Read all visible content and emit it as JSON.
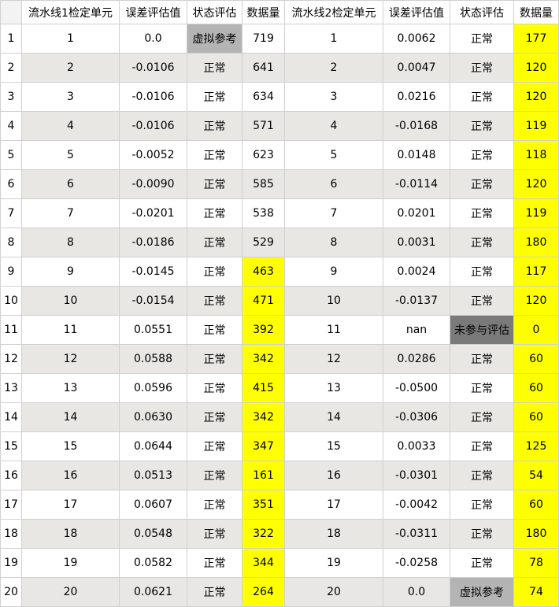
{
  "headers": [
    "流水线1检定单元",
    "误差评估值",
    "状态评估",
    "数据量",
    "流水线2检定单元",
    "误差评估值",
    "状态评估",
    "数据量"
  ],
  "colors": {
    "highlight": "#ffff00",
    "virtual_ref": "#b4b4b4",
    "not_evaluated": "#7a7a7a",
    "alt_row": "#e9e7e4"
  },
  "rows": [
    {
      "n": "1",
      "u1": "1",
      "e1": "0.0",
      "s1": "虚拟参考",
      "c1": "719",
      "u2": "1",
      "e2": "0.0062",
      "s2": "正常",
      "c2": "177"
    },
    {
      "n": "2",
      "u1": "2",
      "e1": "-0.0106",
      "s1": "正常",
      "c1": "641",
      "u2": "2",
      "e2": "0.0047",
      "s2": "正常",
      "c2": "120"
    },
    {
      "n": "3",
      "u1": "3",
      "e1": "-0.0106",
      "s1": "正常",
      "c1": "634",
      "u2": "3",
      "e2": "0.0216",
      "s2": "正常",
      "c2": "120"
    },
    {
      "n": "4",
      "u1": "4",
      "e1": "-0.0106",
      "s1": "正常",
      "c1": "571",
      "u2": "4",
      "e2": "-0.0168",
      "s2": "正常",
      "c2": "119"
    },
    {
      "n": "5",
      "u1": "5",
      "e1": "-0.0052",
      "s1": "正常",
      "c1": "623",
      "u2": "5",
      "e2": "0.0148",
      "s2": "正常",
      "c2": "118"
    },
    {
      "n": "6",
      "u1": "6",
      "e1": "-0.0090",
      "s1": "正常",
      "c1": "585",
      "u2": "6",
      "e2": "-0.0114",
      "s2": "正常",
      "c2": "120"
    },
    {
      "n": "7",
      "u1": "7",
      "e1": "-0.0201",
      "s1": "正常",
      "c1": "538",
      "u2": "7",
      "e2": "0.0201",
      "s2": "正常",
      "c2": "119"
    },
    {
      "n": "8",
      "u1": "8",
      "e1": "-0.0186",
      "s1": "正常",
      "c1": "529",
      "u2": "8",
      "e2": "0.0031",
      "s2": "正常",
      "c2": "180"
    },
    {
      "n": "9",
      "u1": "9",
      "e1": "-0.0145",
      "s1": "正常",
      "c1": "463",
      "u2": "9",
      "e2": "0.0024",
      "s2": "正常",
      "c2": "117"
    },
    {
      "n": "10",
      "u1": "10",
      "e1": "-0.0154",
      "s1": "正常",
      "c1": "471",
      "u2": "10",
      "e2": "-0.0137",
      "s2": "正常",
      "c2": "120"
    },
    {
      "n": "11",
      "u1": "11",
      "e1": "0.0551",
      "s1": "正常",
      "c1": "392",
      "u2": "11",
      "e2": "nan",
      "s2": "未参与评估",
      "c2": "0"
    },
    {
      "n": "12",
      "u1": "12",
      "e1": "0.0588",
      "s1": "正常",
      "c1": "342",
      "u2": "12",
      "e2": "0.0286",
      "s2": "正常",
      "c2": "60"
    },
    {
      "n": "13",
      "u1": "13",
      "e1": "0.0596",
      "s1": "正常",
      "c1": "415",
      "u2": "13",
      "e2": "-0.0500",
      "s2": "正常",
      "c2": "60"
    },
    {
      "n": "14",
      "u1": "14",
      "e1": "0.0630",
      "s1": "正常",
      "c1": "342",
      "u2": "14",
      "e2": "-0.0306",
      "s2": "正常",
      "c2": "60"
    },
    {
      "n": "15",
      "u1": "15",
      "e1": "0.0644",
      "s1": "正常",
      "c1": "347",
      "u2": "15",
      "e2": "0.0033",
      "s2": "正常",
      "c2": "125"
    },
    {
      "n": "16",
      "u1": "16",
      "e1": "0.0513",
      "s1": "正常",
      "c1": "161",
      "u2": "16",
      "e2": "-0.0301",
      "s2": "正常",
      "c2": "54"
    },
    {
      "n": "17",
      "u1": "17",
      "e1": "0.0607",
      "s1": "正常",
      "c1": "351",
      "u2": "17",
      "e2": "-0.0042",
      "s2": "正常",
      "c2": "60"
    },
    {
      "n": "18",
      "u1": "18",
      "e1": "0.0548",
      "s1": "正常",
      "c1": "322",
      "u2": "18",
      "e2": "-0.0311",
      "s2": "正常",
      "c2": "180"
    },
    {
      "n": "19",
      "u1": "19",
      "e1": "0.0582",
      "s1": "正常",
      "c1": "344",
      "u2": "19",
      "e2": "-0.0258",
      "s2": "正常",
      "c2": "78"
    },
    {
      "n": "20",
      "u1": "20",
      "e1": "0.0621",
      "s1": "正常",
      "c1": "264",
      "u2": "20",
      "e2": "0.0",
      "s2": "虚拟参考",
      "c2": "74"
    }
  ]
}
